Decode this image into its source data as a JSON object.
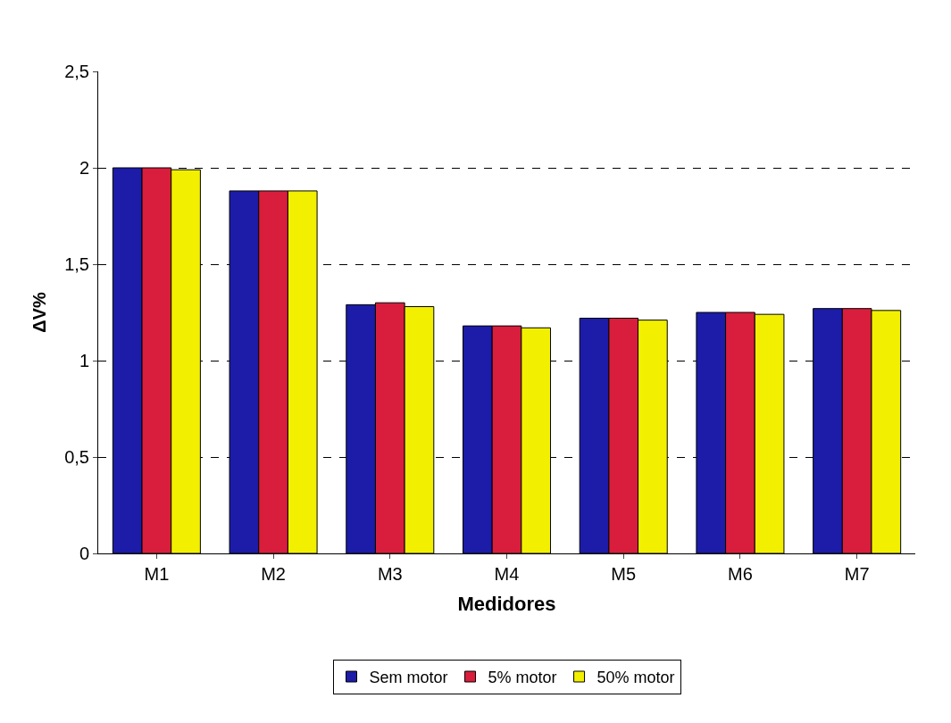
{
  "chart_data": {
    "type": "bar",
    "xlabel": "Medidores",
    "ylabel": "ΔV%",
    "categories": [
      "M1",
      "M2",
      "M3",
      "M4",
      "M5",
      "M6",
      "M7"
    ],
    "series": [
      {
        "name": "Sem motor",
        "color": "#1c1ca8",
        "values": [
          2.0,
          1.88,
          1.29,
          1.18,
          1.22,
          1.25,
          1.27
        ]
      },
      {
        "name": "5% motor",
        "color": "#d81e3c",
        "values": [
          2.0,
          1.88,
          1.3,
          1.18,
          1.22,
          1.25,
          1.27
        ]
      },
      {
        "name": "50% motor",
        "color": "#f2f000",
        "values": [
          1.99,
          1.88,
          1.28,
          1.17,
          1.21,
          1.24,
          1.26
        ]
      }
    ],
    "ylim": [
      0,
      2.5
    ],
    "yticks": [
      0,
      {
        "value": 0.5,
        "label": "0,5"
      },
      1,
      {
        "value": 1.5,
        "label": "1,5"
      },
      2,
      {
        "value": 2.5,
        "label": "2,5"
      }
    ],
    "grid": "y",
    "legend": "bottom"
  }
}
